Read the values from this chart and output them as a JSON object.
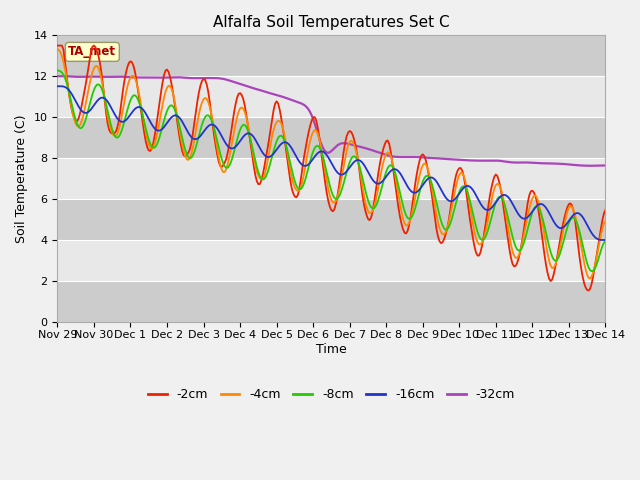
{
  "title": "Alfalfa Soil Temperatures Set C",
  "xlabel": "Time",
  "ylabel": "Soil Temperature (C)",
  "ylim": [
    0,
    14
  ],
  "yticks": [
    0,
    2,
    4,
    6,
    8,
    10,
    12,
    14
  ],
  "annotation_label": "TA_met",
  "annotation_color": "#aa0000",
  "annotation_bg": "#ffffcc",
  "annotation_edge": "#999966",
  "series_colors": {
    "-2cm": "#ee2200",
    "-4cm": "#ff8800",
    "-8cm": "#22cc00",
    "-16cm": "#2233cc",
    "-32cm": "#aa44bb"
  },
  "xtick_labels": [
    "Nov 29",
    "Nov 30",
    "Dec 1",
    "Dec 2",
    "Dec 3",
    "Dec 4",
    "Dec 5",
    "Dec 6",
    "Dec 7",
    "Dec 8",
    "Dec 9",
    "Dec 10",
    "Dec 11",
    "Dec 12",
    "Dec 13",
    "Dec 14"
  ],
  "fig_facecolor": "#f0f0f0",
  "ax_facecolor": "#e8e8e8",
  "grid_light": "#d8d8d8",
  "grid_dark": "#cccccc"
}
